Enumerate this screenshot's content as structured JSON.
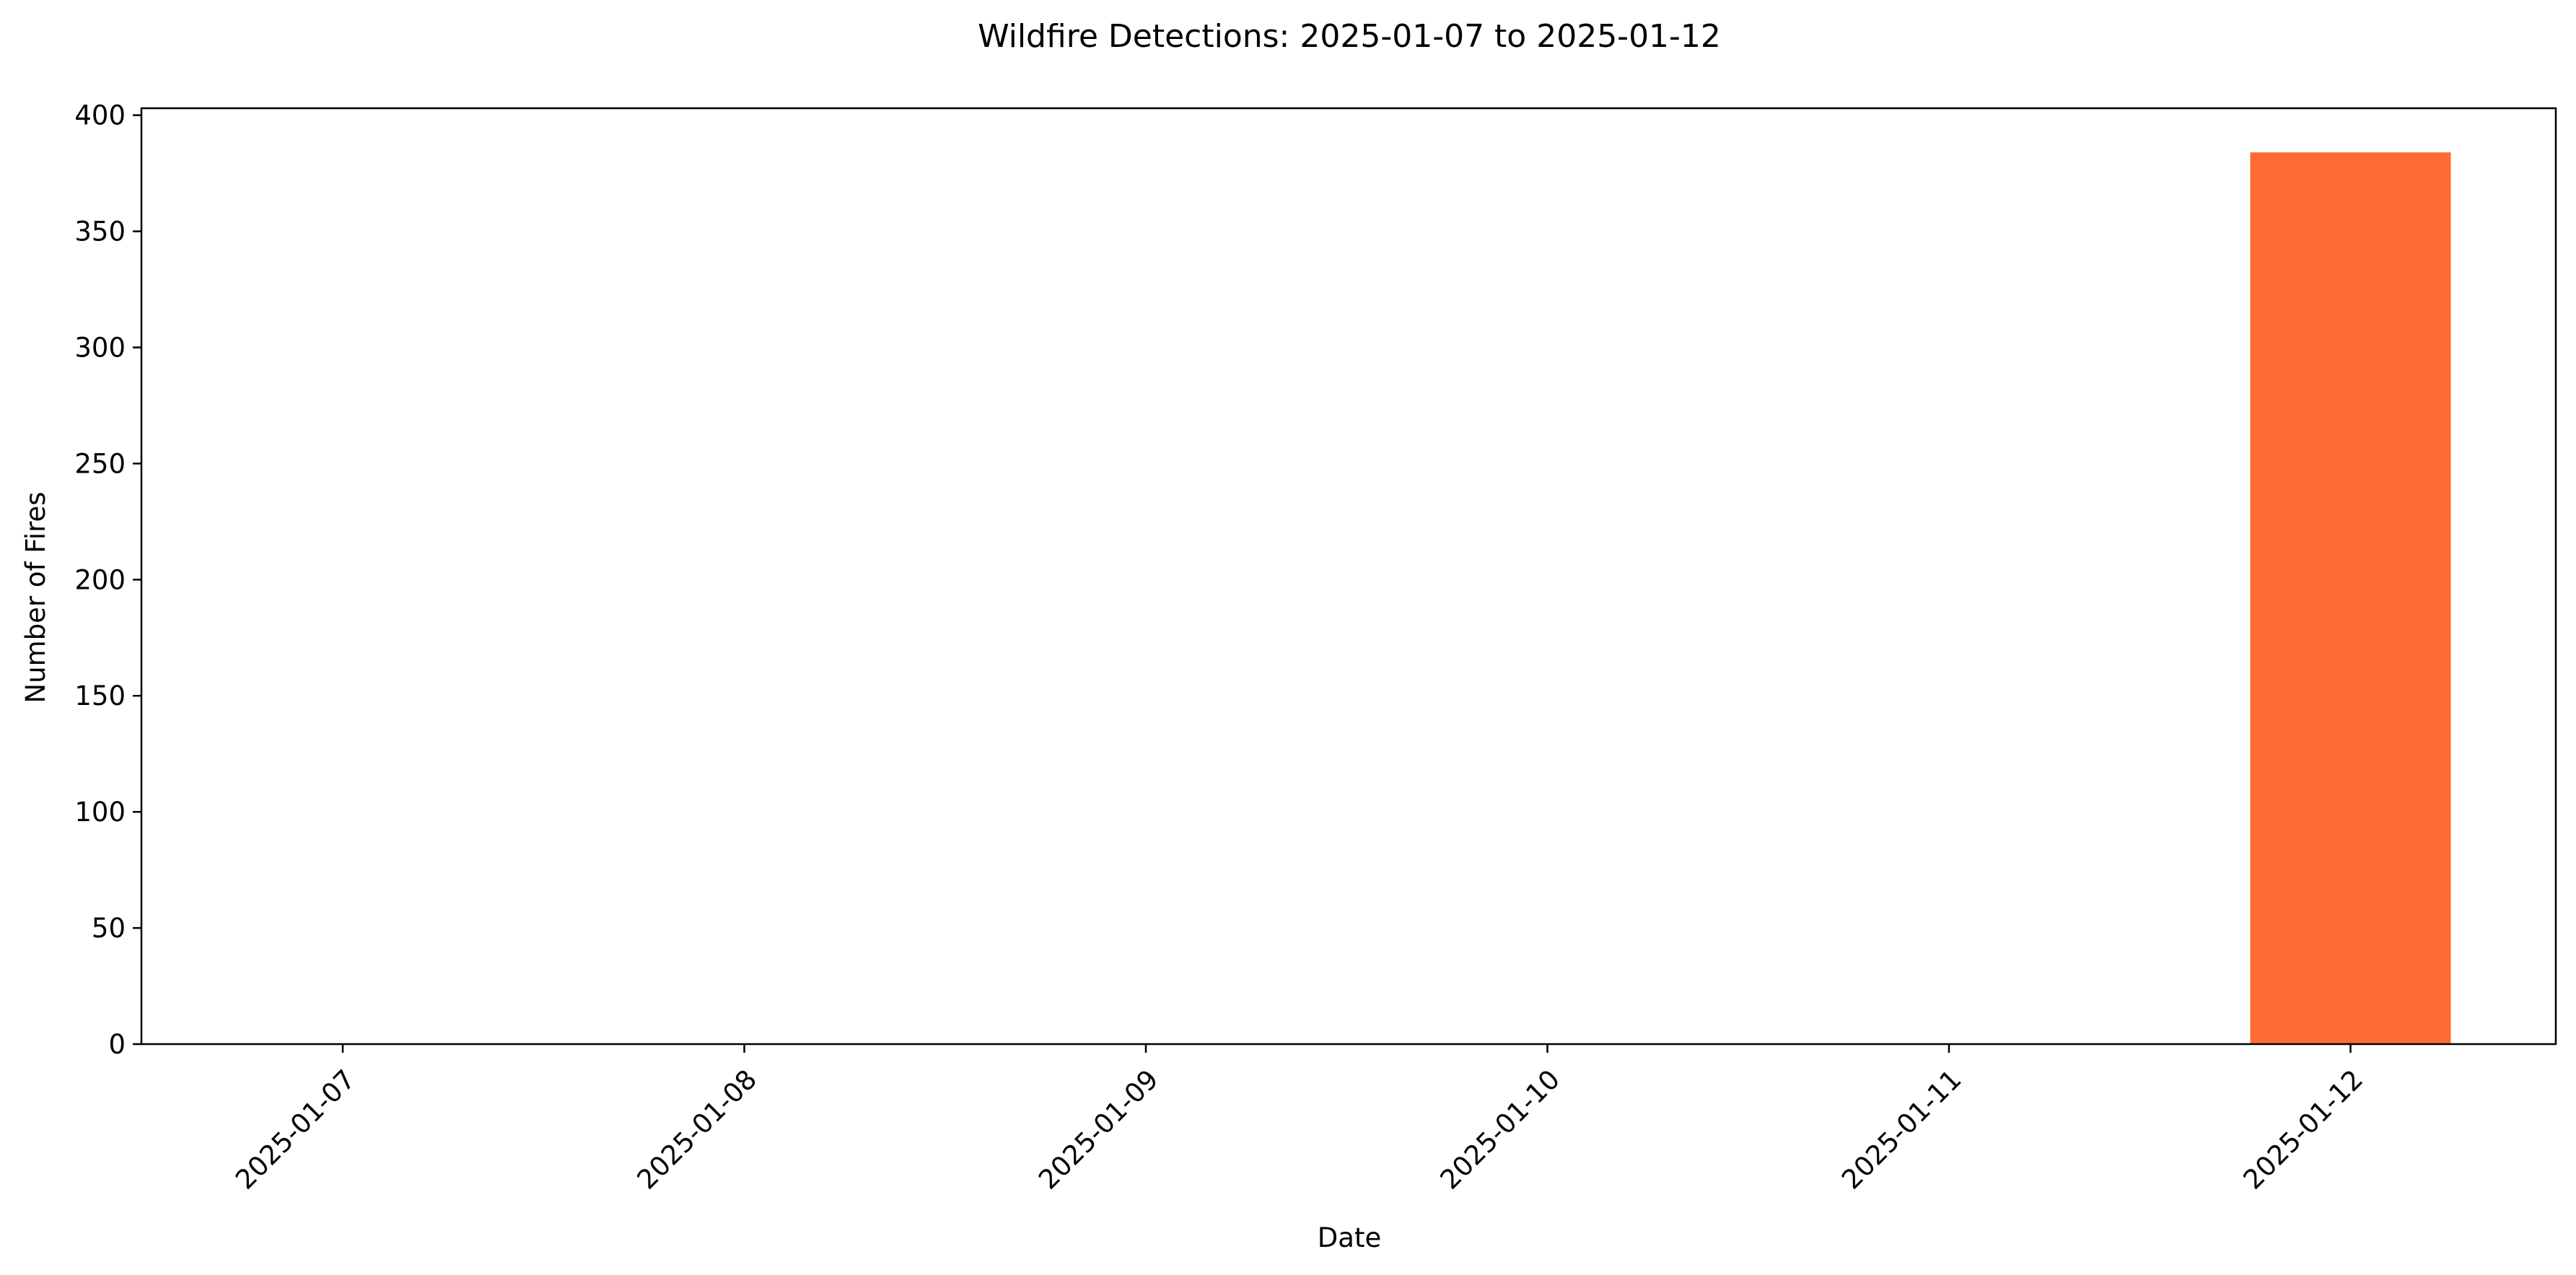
{
  "chart_data": {
    "type": "bar",
    "title": "Wildfire Detections: 2025-01-07 to 2025-01-12",
    "xlabel": "Date",
    "ylabel": "Number of Fires",
    "categories": [
      "2025-01-07",
      "2025-01-08",
      "2025-01-09",
      "2025-01-10",
      "2025-01-11",
      "2025-01-12"
    ],
    "values": [
      0,
      0,
      0,
      0,
      0,
      384
    ],
    "ylim": [
      0,
      403
    ],
    "yticks": [
      0,
      50,
      100,
      150,
      200,
      250,
      300,
      350,
      400
    ],
    "bar_color": "#ff6b35",
    "grid": false,
    "xtick_rotation": 45
  }
}
